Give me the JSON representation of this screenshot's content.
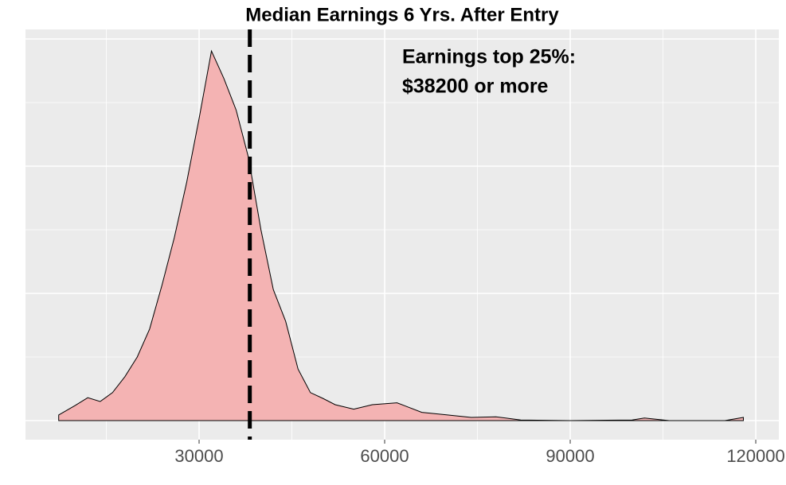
{
  "chart_data": {
    "type": "area",
    "title": "Median Earnings 6 Yrs. After Entry",
    "annotation": [
      "Earnings top 25%:",
      "$38200 or more"
    ],
    "vline": 38200,
    "x": [
      7300,
      10000,
      12000,
      14000,
      16000,
      18000,
      20000,
      22000,
      24000,
      26000,
      28000,
      30000,
      32000,
      34000,
      36000,
      38000,
      40000,
      42000,
      44000,
      46000,
      48000,
      50000,
      52000,
      55000,
      58000,
      62000,
      66000,
      70000,
      74000,
      78000,
      82000,
      90000,
      100000,
      102000,
      106000,
      115000,
      118000
    ],
    "values": [
      8.8e-07,
      2.4e-06,
      3.6e-06,
      3e-06,
      4.4e-06,
      6.9e-06,
      1e-05,
      1.44e-05,
      2.13e-05,
      2.88e-05,
      3.75e-05,
      4.75e-05,
      5.81e-05,
      5.38e-05,
      4.88e-05,
      4.13e-05,
      3e-05,
      2.06e-05,
      1.56e-05,
      8.1e-06,
      4.4e-06,
      3.5e-06,
      2.5e-06,
      1.8e-06,
      2.5e-06,
      2.8e-06,
      1.3e-06,
      9e-07,
      5e-07,
      6e-07,
      1e-07,
      0,
      1e-07,
      4e-07,
      0,
      0,
      5e-07
    ],
    "color": "#f4b3b3",
    "xlim": [
      1931,
      123730
    ],
    "ylim": [
      -3e-06,
      6.15e-05
    ],
    "xticks": [
      30000,
      60000,
      90000,
      {
        "value": 120000,
        "label": "120000"
      }
    ],
    "xminor": [
      15000,
      45000,
      75000,
      105000
    ],
    "yticks": [
      0,
      2e-05,
      4e-05,
      6e-05
    ],
    "yminor": [
      1e-05,
      3e-05,
      5e-05
    ],
    "grid": true
  }
}
